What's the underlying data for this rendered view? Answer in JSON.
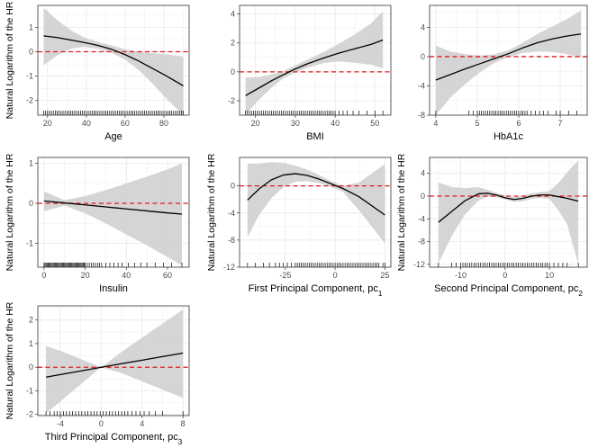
{
  "colors": {
    "band": "#d3d3d3",
    "curve": "#000000",
    "reference": "#e41a1c",
    "grid": "#ebebeb",
    "panel_border": "#333333"
  },
  "chart_data": [
    {
      "id": "age",
      "type": "line",
      "title": "",
      "xlabel": "Age",
      "xlabel_sub": "",
      "ylabel": "Natural Logarithm of the HR",
      "show_ylabel": true,
      "xlim": [
        15,
        93
      ],
      "ylim": [
        -2.6,
        1.9
      ],
      "xticks": [
        20,
        40,
        60,
        80
      ],
      "yticks": [
        -2,
        -1,
        0,
        1
      ],
      "reference_y": 0,
      "x": [
        18,
        25,
        32,
        39,
        46,
        53,
        60,
        67,
        74,
        81,
        90
      ],
      "y": [
        0.65,
        0.58,
        0.48,
        0.38,
        0.26,
        0.1,
        -0.12,
        -0.38,
        -0.68,
        -0.98,
        -1.4
      ],
      "lower": [
        -0.55,
        -0.15,
        0.12,
        0.2,
        0.12,
        -0.05,
        -0.32,
        -0.75,
        -1.3,
        -1.9,
        -2.6
      ],
      "upper": [
        1.8,
        1.3,
        0.88,
        0.58,
        0.4,
        0.26,
        0.1,
        0.0,
        -0.06,
        -0.1,
        -0.2
      ],
      "rug": [
        18,
        19,
        20,
        21,
        22,
        23,
        24,
        25,
        26,
        27,
        28,
        29,
        30,
        31,
        32,
        33,
        34,
        35,
        36,
        37,
        38,
        39,
        40,
        41,
        42,
        43,
        44,
        45,
        46,
        47,
        48,
        49,
        50,
        51,
        52,
        53,
        54,
        55,
        56,
        57,
        58,
        59,
        60,
        61,
        62,
        63,
        64,
        65,
        66,
        67,
        68,
        69,
        70,
        71,
        72,
        73,
        74,
        75,
        76,
        77,
        78,
        79,
        80,
        81,
        82,
        83,
        84,
        85,
        86,
        87,
        88,
        89,
        90
      ]
    },
    {
      "id": "bmi",
      "type": "line",
      "title": "",
      "xlabel": "BMI",
      "xlabel_sub": "",
      "ylabel": "",
      "show_ylabel": false,
      "xlim": [
        16,
        54
      ],
      "ylim": [
        -3.0,
        4.6
      ],
      "xticks": [
        20,
        30,
        40,
        50
      ],
      "yticks": [
        -2,
        0,
        2,
        4
      ],
      "reference_y": 0,
      "x": [
        17.5,
        21,
        24,
        27,
        30,
        33,
        37,
        41,
        45,
        49,
        52
      ],
      "y": [
        -1.65,
        -1.1,
        -0.62,
        -0.2,
        0.2,
        0.55,
        0.95,
        1.3,
        1.6,
        1.9,
        2.2
      ],
      "lower": [
        -2.95,
        -1.9,
        -1.1,
        -0.45,
        -0.05,
        0.28,
        0.6,
        0.72,
        0.62,
        0.5,
        0.25
      ],
      "upper": [
        -0.4,
        -0.35,
        -0.18,
        0.05,
        0.45,
        0.85,
        1.35,
        1.95,
        2.6,
        3.35,
        4.2
      ],
      "rug": [
        17.5,
        18,
        18.5,
        19,
        19.5,
        20,
        20.5,
        21,
        21.5,
        22,
        22.5,
        23,
        23.5,
        24,
        24.5,
        25,
        25.5,
        26,
        26.5,
        27,
        27.5,
        28,
        28.5,
        29,
        29.5,
        30,
        30.5,
        31,
        31.5,
        32,
        32.5,
        33,
        33.5,
        34,
        34.5,
        35,
        35.5,
        36,
        36.5,
        37,
        37.5,
        38,
        38.5,
        39,
        39.5,
        40,
        41,
        42,
        43,
        44.5,
        46,
        48,
        50,
        52
      ]
    },
    {
      "id": "hba1c",
      "type": "line",
      "title": "",
      "xlabel": "HbA1c",
      "xlabel_sub": "",
      "ylabel": "",
      "show_ylabel": false,
      "xlim": [
        3.85,
        7.65
      ],
      "ylim": [
        -8.0,
        7.0
      ],
      "xticks": [
        4,
        5,
        6,
        7
      ],
      "yticks": [
        -8,
        -4,
        0,
        4
      ],
      "reference_y": 0,
      "x": [
        4.0,
        4.35,
        4.7,
        5.05,
        5.4,
        5.75,
        6.1,
        6.45,
        6.8,
        7.15,
        7.5
      ],
      "y": [
        -3.2,
        -2.45,
        -1.7,
        -1.0,
        -0.3,
        0.4,
        1.2,
        1.9,
        2.4,
        2.8,
        3.1
      ],
      "lower": [
        -8.0,
        -5.6,
        -3.8,
        -2.2,
        -0.9,
        -0.05,
        0.5,
        0.7,
        0.65,
        0.35,
        -0.1
      ],
      "upper": [
        1.5,
        0.7,
        0.35,
        0.15,
        0.3,
        0.85,
        1.9,
        3.1,
        4.1,
        5.1,
        6.3
      ],
      "rug": [
        4.0,
        4.8,
        4.9,
        5.0,
        5.05,
        5.1,
        5.15,
        5.2,
        5.25,
        5.3,
        5.35,
        5.4,
        5.45,
        5.5,
        5.55,
        5.6,
        5.65,
        5.7,
        5.75,
        5.8,
        5.85,
        5.9,
        5.95,
        6.0,
        6.05,
        6.1,
        6.15,
        6.2,
        6.3,
        6.4,
        6.5,
        6.6,
        6.7,
        6.9,
        7.0,
        7.2,
        7.4
      ]
    },
    {
      "id": "insulin",
      "type": "line",
      "title": "",
      "xlabel": "Insulin",
      "xlabel_sub": "",
      "ylabel": "Natural Logarithm of the HR",
      "show_ylabel": true,
      "xlim": [
        -3,
        70.5
      ],
      "ylim": [
        -1.6,
        1.15
      ],
      "xticks": [
        0,
        20,
        40,
        60
      ],
      "yticks": [
        -1,
        0,
        1
      ],
      "reference_y": 0,
      "x": [
        0,
        10,
        20,
        30,
        40,
        50,
        60,
        67
      ],
      "y": [
        0.06,
        0.01,
        -0.04,
        -0.09,
        -0.14,
        -0.19,
        -0.24,
        -0.27
      ],
      "lower": [
        -0.2,
        -0.06,
        -0.25,
        -0.5,
        -0.78,
        -1.05,
        -1.35,
        -1.55
      ],
      "upper": [
        0.3,
        0.08,
        0.18,
        0.33,
        0.5,
        0.67,
        0.85,
        1.0
      ],
      "rug": [
        0,
        0.5,
        1,
        1.5,
        2,
        2.5,
        3,
        3.5,
        4,
        4.5,
        5,
        5.5,
        6,
        6.5,
        7,
        7.5,
        8,
        8.5,
        9,
        9.5,
        10,
        10.5,
        11,
        11.5,
        12,
        12.5,
        13,
        13.5,
        14,
        14.5,
        15,
        15.5,
        16,
        16.5,
        17,
        17.5,
        18,
        18.5,
        19,
        19.5,
        20,
        21,
        22,
        23,
        24,
        25,
        26,
        27,
        28,
        30,
        32,
        34,
        36,
        38,
        41,
        44,
        47,
        50,
        54,
        58,
        62,
        67
      ]
    },
    {
      "id": "pc1",
      "type": "line",
      "title": "",
      "xlabel": "First Principal Component, pc",
      "xlabel_sub": "1",
      "ylabel": "Natural Logarithm of the HR",
      "show_ylabel": true,
      "xlim": [
        -48,
        28
      ],
      "ylim": [
        -12,
        4.2
      ],
      "xticks": [
        -25,
        0,
        25
      ],
      "yticks": [
        -12,
        -8,
        -4,
        0
      ],
      "reference_y": 0,
      "x": [
        -44,
        -38,
        -32,
        -26,
        -20,
        -14,
        -8,
        -2,
        4,
        12,
        25
      ],
      "y": [
        -2.1,
        -0.4,
        0.9,
        1.6,
        1.8,
        1.55,
        1.0,
        0.3,
        -0.4,
        -1.6,
        -4.3
      ],
      "lower": [
        -7.6,
        -4.2,
        -1.8,
        -0.2,
        0.6,
        0.7,
        0.4,
        -0.15,
        -0.9,
        -3.6,
        -8.5
      ],
      "upper": [
        3.3,
        3.3,
        3.5,
        3.4,
        3.0,
        2.4,
        1.6,
        0.7,
        0.05,
        0.5,
        3.2
      ],
      "rug": [
        -44,
        -40,
        -36,
        -33,
        -30,
        -28,
        -26,
        -24,
        -22,
        -20,
        -19,
        -18,
        -17,
        -16,
        -15,
        -14,
        -13,
        -12,
        -11,
        -10,
        -9,
        -8,
        -7,
        -6,
        -5,
        -4,
        -3,
        -2,
        -1,
        0,
        1,
        2,
        3,
        4,
        5,
        6,
        7,
        8,
        9,
        10,
        11,
        12,
        13,
        14,
        15,
        16,
        17,
        18,
        19,
        20,
        21,
        22,
        24,
        25
      ]
    },
    {
      "id": "pc2",
      "type": "line",
      "title": "",
      "xlabel": "Second Principal Component, pc",
      "xlabel_sub": "2",
      "ylabel": "Natural Logarithm of the HR",
      "show_ylabel": true,
      "xlim": [
        -17,
        18.5
      ],
      "ylim": [
        -12.5,
        6.8
      ],
      "xticks": [
        -10,
        0,
        10
      ],
      "yticks": [
        -12,
        -8,
        -4,
        0,
        4
      ],
      "reference_y": 0,
      "x": [
        -15,
        -12,
        -9,
        -6,
        -4,
        -2,
        0,
        2,
        4,
        6,
        8,
        10,
        12,
        14,
        16.5
      ],
      "y": [
        -4.6,
        -2.7,
        -0.8,
        0.4,
        0.5,
        0.2,
        -0.3,
        -0.6,
        -0.4,
        0.0,
        0.2,
        0.2,
        -0.1,
        -0.4,
        -0.9
      ],
      "lower": [
        -11.8,
        -7.0,
        -3.2,
        -0.8,
        -0.1,
        -0.2,
        -0.6,
        -1.0,
        -0.9,
        -0.5,
        -0.3,
        -0.5,
        -2.5,
        -5.0,
        -12.0
      ],
      "upper": [
        2.4,
        1.6,
        1.4,
        1.6,
        1.1,
        0.6,
        0.1,
        -0.2,
        0.1,
        0.5,
        0.7,
        0.9,
        2.3,
        4.2,
        6.3
      ],
      "rug": [
        -15,
        -12,
        -11,
        -10,
        -9.5,
        -9,
        -8.5,
        -8,
        -7.5,
        -7,
        -6.5,
        -6,
        -5.5,
        -5,
        -4.5,
        -4,
        -3.5,
        -3,
        -2.5,
        -2,
        -1.5,
        -1,
        -0.5,
        0,
        0.5,
        1,
        1.5,
        2,
        2.5,
        3,
        3.5,
        4,
        4.5,
        5,
        5.5,
        6,
        6.5,
        7,
        7.5,
        8,
        8.5,
        9,
        9.5,
        10,
        11,
        12,
        13,
        14,
        16.5
      ]
    },
    {
      "id": "pc3",
      "type": "line",
      "title": "",
      "xlabel": "Third Principal Component, pc",
      "xlabel_sub": "3",
      "ylabel": "Natural Logarithm of the HR",
      "show_ylabel": true,
      "xlim": [
        -6.2,
        8.6
      ],
      "ylim": [
        -2.05,
        2.6
      ],
      "xticks": [
        -4,
        0,
        4,
        8
      ],
      "yticks": [
        -2,
        -1,
        0,
        1,
        2
      ],
      "reference_y": 0,
      "x": [
        -5.4,
        -4,
        -2,
        0,
        2,
        4,
        6,
        8
      ],
      "y": [
        -0.42,
        -0.31,
        -0.16,
        0.0,
        0.15,
        0.3,
        0.45,
        0.6
      ],
      "lower": [
        -1.95,
        -1.45,
        -0.72,
        0.0,
        -0.25,
        -0.6,
        -0.95,
        -1.3
      ],
      "upper": [
        0.9,
        0.7,
        0.35,
        0.0,
        0.65,
        1.25,
        1.85,
        2.45
      ],
      "rug": [
        -5.4,
        -5,
        -4.6,
        -4.3,
        -4,
        -3.7,
        -3.4,
        -3.1,
        -2.8,
        -2.5,
        -2.2,
        -1.9,
        -1.6,
        -1.3,
        -1,
        -0.7,
        -0.4,
        -0.1,
        0.2,
        0.5,
        0.8,
        1.1,
        1.4,
        1.7,
        2,
        2.3,
        2.6,
        3,
        3.4,
        3.8,
        4.2,
        4.7,
        5.3,
        6,
        8
      ]
    }
  ]
}
